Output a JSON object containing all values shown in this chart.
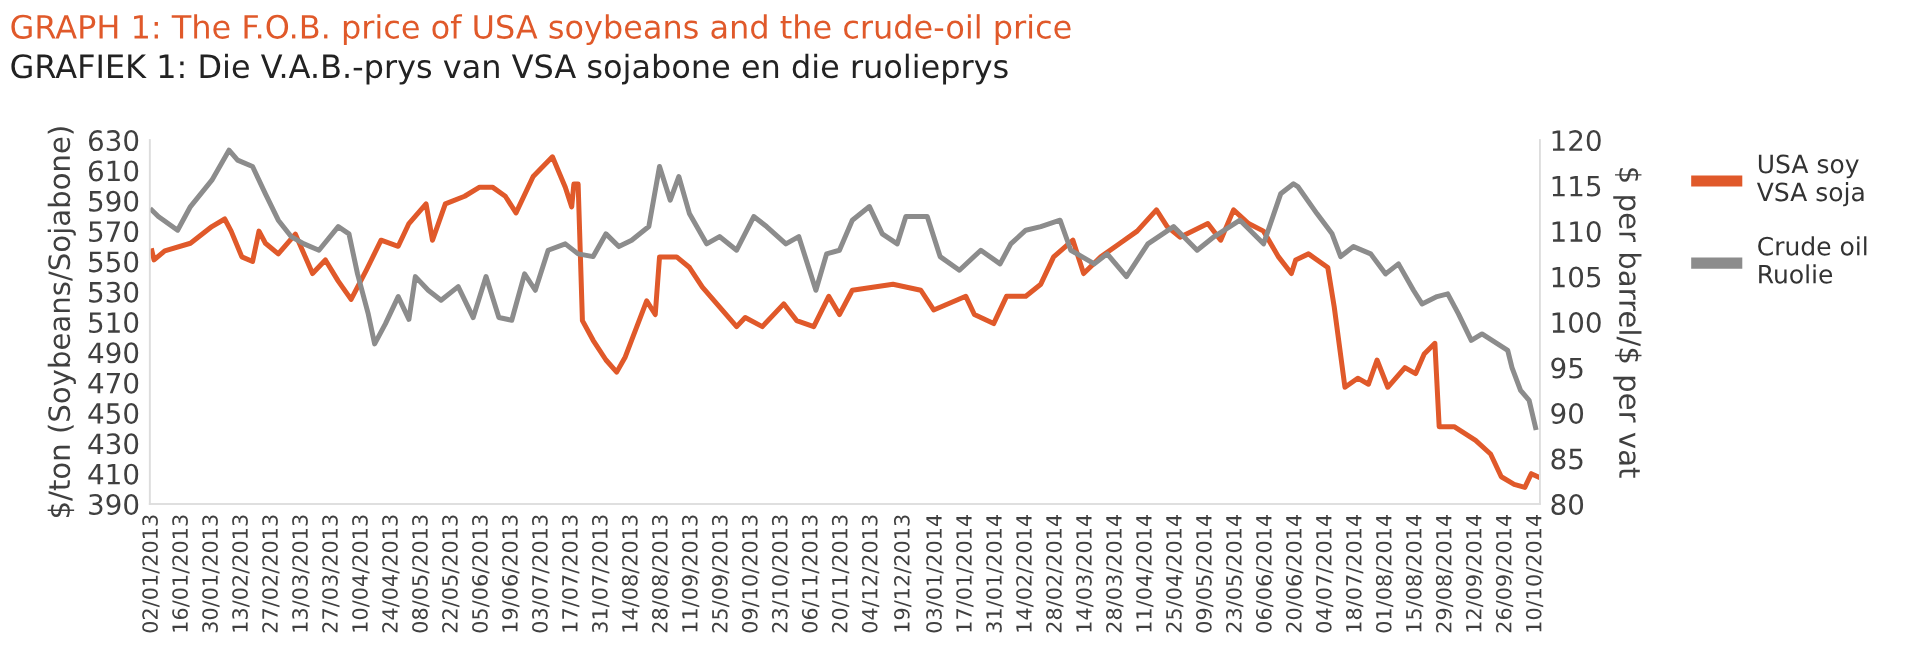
{
  "chart_data": {
    "type": "line",
    "title": "GRAPH 1: The F.O.B. price of USA soybeans and the crude-oil price",
    "subtitle": "GRAFIEK 1: Die V.A.B.-prys van VSA sojabone en die ruolieprys",
    "ylabel": "$/ton (Soybeans/Sojabone)",
    "y2label": "$ per barrel/$ per vat",
    "ylim": [
      390,
      630
    ],
    "yticks": [
      390,
      410,
      430,
      450,
      470,
      490,
      510,
      530,
      550,
      570,
      590,
      610,
      630
    ],
    "y2lim": [
      80,
      120
    ],
    "y2ticks": [
      80,
      85,
      90,
      95,
      100,
      105,
      110,
      115,
      120
    ],
    "xlim": [
      "2013-01-01",
      "2014-10-12"
    ],
    "xticks": [
      {
        "value": "2013-01-02",
        "label": "02/01/2013"
      },
      {
        "value": "2013-01-16",
        "label": "16/01/2013"
      },
      {
        "value": "2013-01-30",
        "label": "30/01/2013"
      },
      {
        "value": "2013-02-13",
        "label": "13/02/2013"
      },
      {
        "value": "2013-02-27",
        "label": "27/02/2013"
      },
      {
        "value": "2013-03-13",
        "label": "13/03/2013"
      },
      {
        "value": "2013-03-27",
        "label": "27/03/2013"
      },
      {
        "value": "2013-04-10",
        "label": "10/04/2013"
      },
      {
        "value": "2013-04-24",
        "label": "24/04/2013"
      },
      {
        "value": "2013-05-08",
        "label": "08/05/2013"
      },
      {
        "value": "2013-05-22",
        "label": "22/05/2013"
      },
      {
        "value": "2013-06-05",
        "label": "05/06/2013"
      },
      {
        "value": "2013-06-19",
        "label": "19/06/2013"
      },
      {
        "value": "2013-07-03",
        "label": "03/07/2013"
      },
      {
        "value": "2013-07-17",
        "label": "17/07/2013"
      },
      {
        "value": "2013-07-31",
        "label": "31/07/2013"
      },
      {
        "value": "2013-08-14",
        "label": "14/08/2013"
      },
      {
        "value": "2013-08-28",
        "label": "28/08/2013"
      },
      {
        "value": "2013-09-11",
        "label": "11/09/2013"
      },
      {
        "value": "2013-09-25",
        "label": "25/09/2013"
      },
      {
        "value": "2013-10-09",
        "label": "09/10/2013"
      },
      {
        "value": "2013-10-23",
        "label": "23/10/2013"
      },
      {
        "value": "2013-11-06",
        "label": "06/11/2013"
      },
      {
        "value": "2013-11-20",
        "label": "20/11/2013"
      },
      {
        "value": "2013-12-04",
        "label": "04/12/2013"
      },
      {
        "value": "2013-12-19",
        "label": "19/12/2013"
      },
      {
        "value": "2014-01-03",
        "label": "03/01/2014"
      },
      {
        "value": "2014-01-17",
        "label": "17/01/2014"
      },
      {
        "value": "2014-01-31",
        "label": "31/01/2014"
      },
      {
        "value": "2014-02-14",
        "label": "14/02/2014"
      },
      {
        "value": "2014-02-28",
        "label": "28/02/2014"
      },
      {
        "value": "2014-03-14",
        "label": "14/03/2014"
      },
      {
        "value": "2014-03-28",
        "label": "28/03/2014"
      },
      {
        "value": "2014-04-11",
        "label": "11/04/2014"
      },
      {
        "value": "2014-04-25",
        "label": "25/04/2014"
      },
      {
        "value": "2014-05-09",
        "label": "09/05/2014"
      },
      {
        "value": "2014-05-23",
        "label": "23/05/2014"
      },
      {
        "value": "2014-06-06",
        "label": "06/06/2014"
      },
      {
        "value": "2014-06-20",
        "label": "20/06/2014"
      },
      {
        "value": "2014-07-04",
        "label": "04/07/2014"
      },
      {
        "value": "2014-07-18",
        "label": "18/07/2014"
      },
      {
        "value": "2014-08-01",
        "label": "01/08/2014"
      },
      {
        "value": "2014-08-15",
        "label": "15/08/2014"
      },
      {
        "value": "2014-08-29",
        "label": "29/08/2014"
      },
      {
        "value": "2014-09-12",
        "label": "12/09/2014"
      },
      {
        "value": "2014-09-26",
        "label": "26/09/2014"
      },
      {
        "value": "2014-10-10",
        "label": "10/10/2014"
      }
    ],
    "legend": "right",
    "grid": false,
    "line_style": "solid",
    "marker": "none",
    "series": [
      {
        "name": "USA soy\nVSA soja",
        "color": "#e0592a",
        "x": [
          "2013-01-02",
          "2013-01-03",
          "2013-01-08",
          "2013-01-20",
          "2013-01-30",
          "2013-02-05",
          "2013-02-08",
          "2013-02-13",
          "2013-02-18",
          "2013-02-21",
          "2013-02-24",
          "2013-03-02",
          "2013-03-10",
          "2013-03-18",
          "2013-03-24",
          "2013-03-30",
          "2013-04-05",
          "2013-04-12",
          "2013-04-19",
          "2013-04-27",
          "2013-05-02",
          "2013-05-10",
          "2013-05-13",
          "2013-05-19",
          "2013-05-28",
          "2013-06-04",
          "2013-06-10",
          "2013-06-16",
          "2013-06-21",
          "2013-06-29",
          "2013-07-08",
          "2013-07-14",
          "2013-07-17",
          "2013-07-18",
          "2013-07-20",
          "2013-07-22",
          "2013-07-27",
          "2013-08-02",
          "2013-08-07",
          "2013-08-11",
          "2013-08-21",
          "2013-08-25",
          "2013-08-27",
          "2013-09-04",
          "2013-09-10",
          "2013-09-16",
          "2013-09-24",
          "2013-10-02",
          "2013-10-06",
          "2013-10-14",
          "2013-10-24",
          "2013-10-30",
          "2013-11-07",
          "2013-11-14",
          "2013-11-19",
          "2013-11-25",
          "2013-12-14",
          "2013-12-27",
          "2014-01-02",
          "2014-01-17",
          "2014-01-21",
          "2014-01-30",
          "2014-02-05",
          "2014-02-14",
          "2014-02-21",
          "2014-02-27",
          "2014-03-08",
          "2014-03-13",
          "2014-03-21",
          "2014-03-30",
          "2014-04-07",
          "2014-04-16",
          "2014-04-21",
          "2014-04-27",
          "2014-05-10",
          "2014-05-16",
          "2014-05-22",
          "2014-05-29",
          "2014-06-05",
          "2014-06-12",
          "2014-06-18",
          "2014-06-20",
          "2014-06-26",
          "2014-07-05",
          "2014-07-08",
          "2014-07-13",
          "2014-07-19",
          "2014-07-24",
          "2014-07-28",
          "2014-08-02",
          "2014-08-10",
          "2014-08-15",
          "2014-08-19",
          "2014-08-24",
          "2014-08-26",
          "2014-09-02",
          "2014-09-12",
          "2014-09-19",
          "2014-09-24",
          "2014-09-30",
          "2014-10-05",
          "2014-10-08",
          "2014-10-11"
        ],
        "values": [
          557,
          551,
          557,
          562,
          573,
          578,
          570,
          553,
          550,
          570,
          562,
          555,
          568,
          542,
          551,
          537,
          525,
          544,
          564,
          560,
          575,
          588,
          564,
          588,
          593,
          599,
          599,
          593,
          582,
          606,
          619,
          599,
          586,
          601,
          601,
          511,
          498,
          485,
          477,
          487,
          524,
          515,
          553,
          553,
          546,
          533,
          520,
          507,
          513,
          507,
          522,
          511,
          507,
          527,
          515,
          531,
          535,
          531,
          518,
          527,
          515,
          509,
          527,
          527,
          535,
          553,
          564,
          542,
          553,
          562,
          570,
          584,
          573,
          566,
          575,
          564,
          584,
          575,
          570,
          553,
          542,
          551,
          555,
          546,
          520,
          467,
          473,
          469,
          485,
          467,
          480,
          476,
          489,
          496,
          441,
          441,
          432,
          423,
          408,
          403,
          401,
          410,
          408
        ]
      },
      {
        "name": "Crude oil\nRuolie",
        "color": "#8c8c8c",
        "axis": "y2",
        "x": [
          "2013-01-02",
          "2013-01-05",
          "2013-01-14",
          "2013-01-20",
          "2013-01-30",
          "2013-02-07",
          "2013-02-11",
          "2013-02-18",
          "2013-02-24",
          "2013-03-02",
          "2013-03-08",
          "2013-03-14",
          "2013-03-21",
          "2013-03-30",
          "2013-04-04",
          "2013-04-08",
          "2013-04-13",
          "2013-04-16",
          "2013-04-21",
          "2013-04-27",
          "2013-05-02",
          "2013-05-05",
          "2013-05-11",
          "2013-05-17",
          "2013-05-25",
          "2013-06-01",
          "2013-06-07",
          "2013-06-13",
          "2013-06-19",
          "2013-06-25",
          "2013-06-30",
          "2013-07-06",
          "2013-07-14",
          "2013-07-20",
          "2013-07-27",
          "2013-08-02",
          "2013-08-08",
          "2013-08-14",
          "2013-08-22",
          "2013-08-27",
          "2013-09-01",
          "2013-09-05",
          "2013-09-10",
          "2013-09-18",
          "2013-09-24",
          "2013-10-02",
          "2013-10-10",
          "2013-10-16",
          "2013-10-25",
          "2013-10-31",
          "2013-11-08",
          "2013-11-13",
          "2013-11-19",
          "2013-11-25",
          "2013-12-03",
          "2013-12-09",
          "2013-12-16",
          "2013-12-20",
          "2013-12-30",
          "2014-01-05",
          "2014-01-14",
          "2014-01-24",
          "2014-02-02",
          "2014-02-07",
          "2014-02-14",
          "2014-02-21",
          "2014-03-02",
          "2014-03-07",
          "2014-03-18",
          "2014-03-24",
          "2014-04-02",
          "2014-04-12",
          "2014-04-24",
          "2014-05-05",
          "2014-05-13",
          "2014-05-25",
          "2014-06-05",
          "2014-06-13",
          "2014-06-19",
          "2014-06-21",
          "2014-06-30",
          "2014-07-07",
          "2014-07-11",
          "2014-07-17",
          "2014-07-25",
          "2014-08-01",
          "2014-08-07",
          "2014-08-14",
          "2014-08-18",
          "2014-08-25",
          "2014-08-30",
          "2014-09-04",
          "2014-09-10",
          "2014-09-15",
          "2014-09-27",
          "2014-09-29",
          "2014-10-03",
          "2014-10-07",
          "2014-10-10"
        ],
        "values": [
          112.3,
          111.6,
          110.1,
          112.7,
          115.6,
          118.9,
          117.8,
          117.1,
          114.1,
          111.2,
          109.4,
          108.6,
          107.9,
          110.5,
          109.7,
          105.3,
          100.9,
          97.6,
          99.8,
          102.8,
          100.3,
          105.0,
          103.5,
          102.4,
          103.9,
          100.5,
          105.0,
          100.5,
          100.2,
          105.3,
          103.5,
          107.9,
          108.6,
          107.5,
          107.2,
          109.7,
          108.3,
          109.0,
          110.5,
          117.1,
          113.4,
          116.0,
          111.9,
          108.6,
          109.4,
          107.9,
          111.6,
          110.5,
          108.6,
          109.4,
          103.5,
          107.5,
          107.9,
          111.2,
          112.7,
          109.7,
          108.6,
          111.6,
          111.6,
          107.2,
          105.7,
          107.9,
          106.4,
          108.6,
          110.1,
          110.5,
          111.2,
          107.9,
          106.4,
          107.5,
          105.0,
          108.6,
          110.5,
          107.9,
          109.4,
          111.2,
          108.6,
          114.1,
          115.2,
          114.9,
          111.9,
          109.7,
          107.2,
          108.3,
          107.5,
          105.3,
          106.4,
          103.5,
          102.0,
          102.8,
          103.1,
          100.9,
          98.0,
          98.7,
          96.9,
          95.0,
          92.5,
          91.4,
          88.4
        ]
      }
    ]
  }
}
